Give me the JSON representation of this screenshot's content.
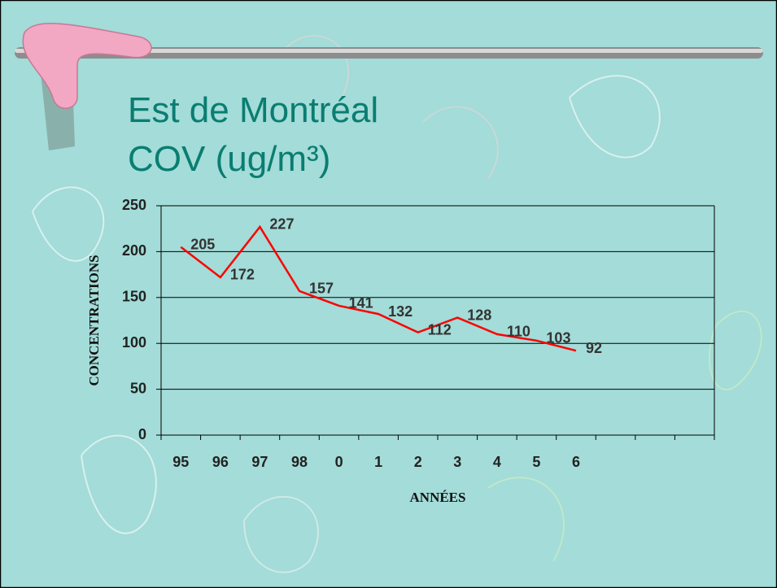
{
  "chart_data": {
    "type": "line",
    "title": [
      "Est de Montréal",
      "COV (ug/m³)"
    ],
    "y_label": "CONCENTRATIONS",
    "x_label": "ANNÉES",
    "categories": [
      "95",
      "96",
      "97",
      "98",
      "0",
      "1",
      "2",
      "3",
      "4",
      "5",
      "6",
      null,
      null,
      null
    ],
    "values": [
      205,
      172,
      227,
      157,
      141,
      132,
      112,
      128,
      110,
      103,
      92,
      null,
      null,
      null
    ],
    "color": "#ff0000",
    "ylim": [
      0,
      250
    ],
    "yticks": [
      0,
      50,
      100,
      150,
      200,
      250
    ],
    "grid": true
  }
}
